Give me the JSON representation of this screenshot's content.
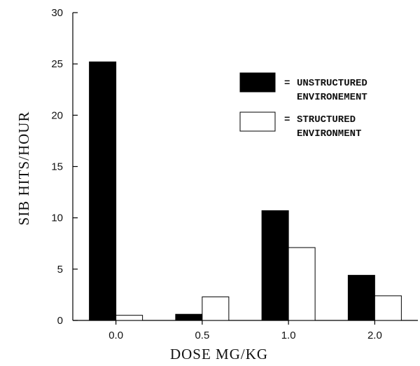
{
  "chart_data": {
    "type": "bar",
    "categories": [
      "0.0",
      "0.5",
      "1.0",
      "2.0"
    ],
    "series": [
      {
        "name": "UNSTRUCTURED ENVIRONEMENT",
        "values": [
          25.2,
          0.6,
          10.7,
          4.4
        ],
        "color": "#000000"
      },
      {
        "name": "STRUCTURED ENVIRONMENT",
        "values": [
          0.5,
          2.3,
          7.1,
          2.4
        ],
        "color": "#ffffff"
      }
    ],
    "xlabel": "DOSE MG/KG",
    "ylabel": "SIB HITS/HOUR",
    "ylim": [
      0,
      30
    ],
    "yticks": [
      "0",
      "5",
      "10",
      "15",
      "20",
      "25",
      "30"
    ],
    "grid": false,
    "legend_position": "top-right",
    "legend": [
      {
        "symbol": "=",
        "line1": "UNSTRUCTURED",
        "line2": "ENVIRONEMENT"
      },
      {
        "symbol": "=",
        "line1": "STRUCTURED",
        "line2": "ENVIRONMENT"
      }
    ]
  }
}
